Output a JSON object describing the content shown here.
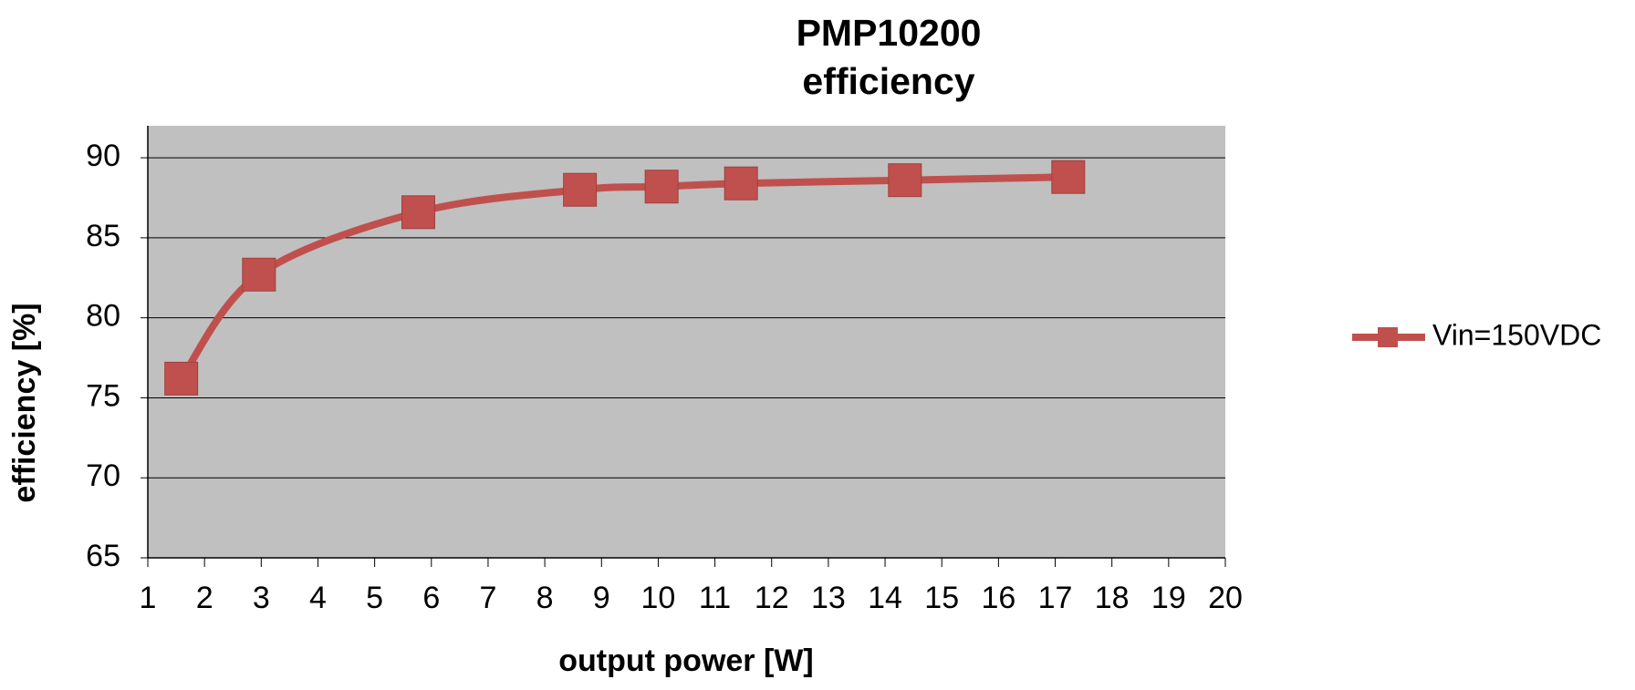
{
  "chart_data": {
    "type": "line",
    "title": [
      "PMP10200",
      "efficiency"
    ],
    "x_label": "output power [W]",
    "y_label": "efficiency [%]",
    "x": [
      1.59,
      2.96,
      5.77,
      8.62,
      10.06,
      11.46,
      14.35,
      17.23
    ],
    "series": [
      {
        "name": "Vin=150VDC",
        "color": "#c0504d",
        "values": [
          76.2,
          82.7,
          86.6,
          88.0,
          88.2,
          88.4,
          88.6,
          88.8
        ]
      }
    ],
    "xlim": [
      1,
      20
    ],
    "xticks": [
      1,
      2,
      3,
      4,
      5,
      6,
      7,
      8,
      9,
      10,
      11,
      12,
      13,
      14,
      15,
      16,
      17,
      18,
      19,
      20
    ],
    "ylim": [
      65,
      92
    ],
    "yticks": [
      65,
      70,
      75,
      80,
      85,
      90
    ],
    "grid": true,
    "plot_background": "#c0c0c0",
    "legend": "right"
  }
}
